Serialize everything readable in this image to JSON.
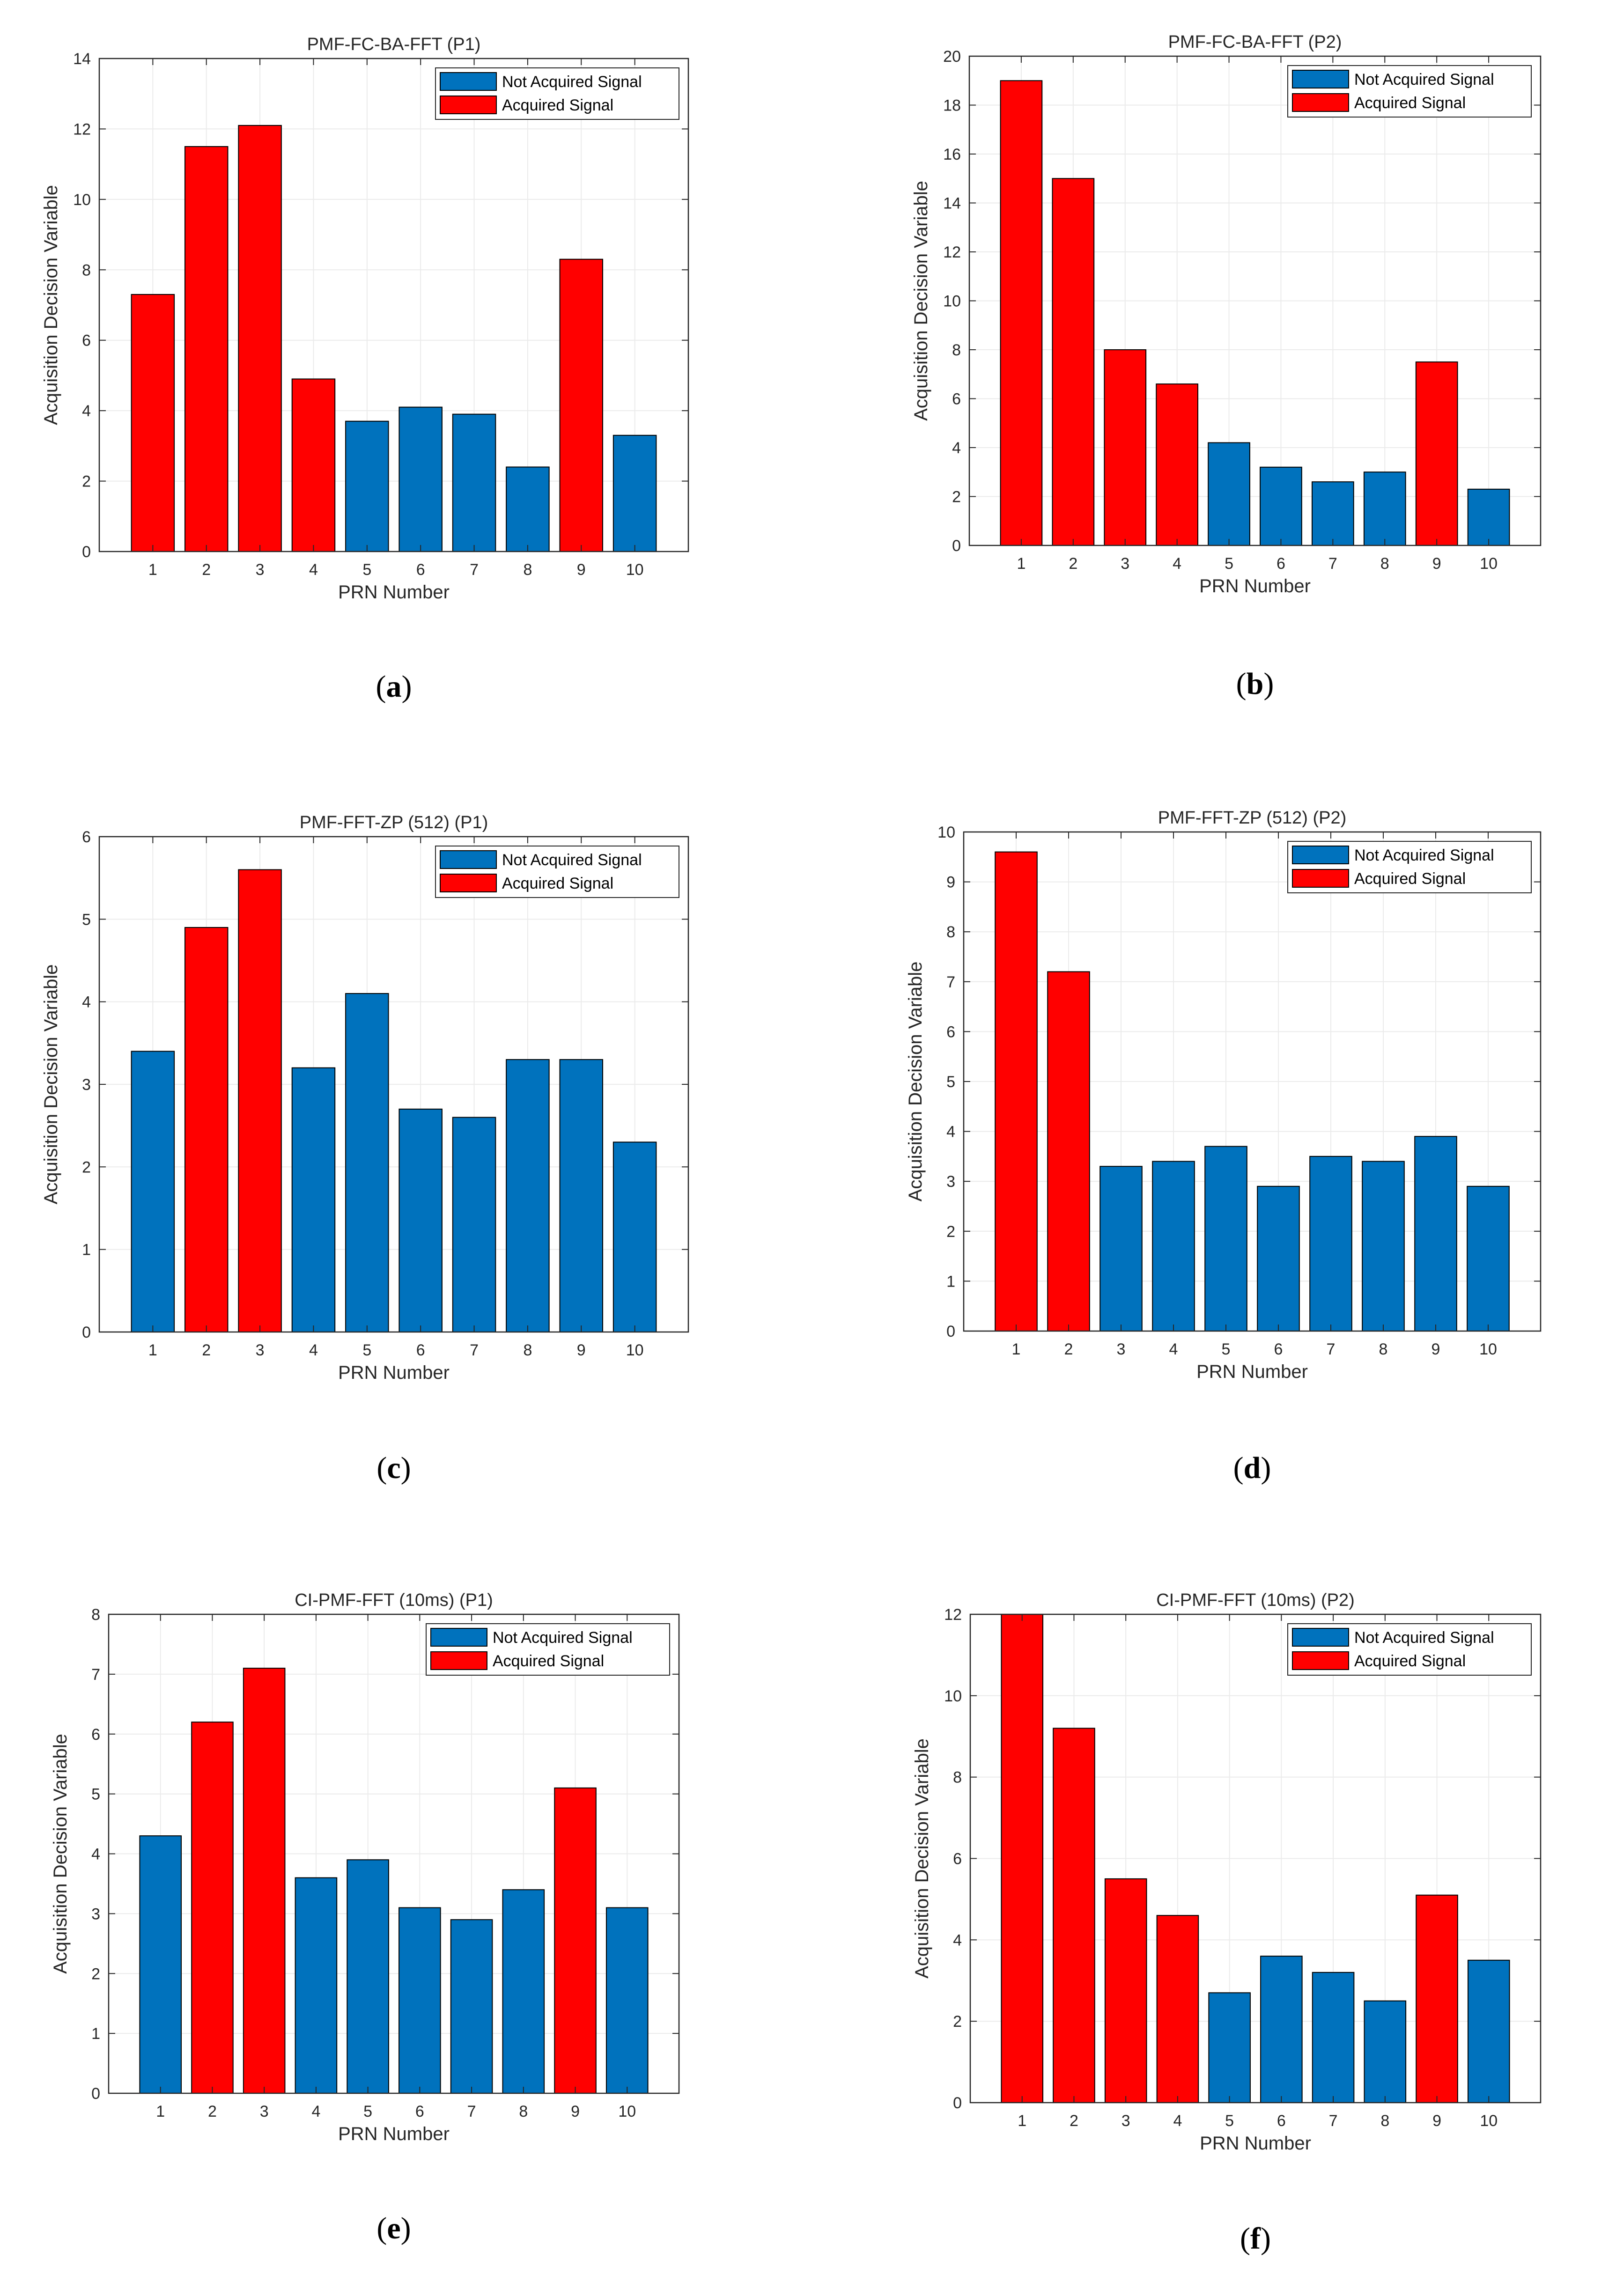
{
  "colors": {
    "not_acquired": "#0072BD",
    "acquired": "#FF0000",
    "grid": "#EBEBEB",
    "axis": "#262626"
  },
  "legend": {
    "not_acquired_label": "Not Acquired Signal",
    "acquired_label": "Acquired Signal"
  },
  "chart_data": [
    {
      "panel": "a",
      "caption_letter": "a",
      "type": "bar",
      "title": "PMF-FC-BA-FFT (P1)",
      "xlabel": "PRN Number",
      "ylabel": "Acquisition Decision Variable",
      "categories": [
        "1",
        "2",
        "3",
        "4",
        "5",
        "6",
        "7",
        "8",
        "9",
        "10"
      ],
      "values": [
        7.3,
        11.5,
        12.1,
        4.9,
        3.7,
        4.1,
        3.9,
        2.4,
        8.3,
        3.3
      ],
      "acquired": [
        true,
        true,
        true,
        true,
        false,
        false,
        false,
        false,
        true,
        false
      ],
      "ylim": [
        0,
        14
      ],
      "yticks": [
        "0",
        "2",
        "4",
        "6",
        "8",
        "10",
        "12",
        "14"
      ],
      "grid": true,
      "legend_position": "top-right"
    },
    {
      "panel": "b",
      "caption_letter": "b",
      "type": "bar",
      "title": "PMF-FC-BA-FFT (P2)",
      "xlabel": "PRN Number",
      "ylabel": "Acquisition Decision Variable",
      "categories": [
        "1",
        "2",
        "3",
        "4",
        "5",
        "6",
        "7",
        "8",
        "9",
        "10"
      ],
      "values": [
        19,
        15,
        8,
        6.6,
        4.2,
        3.2,
        2.6,
        3.0,
        7.5,
        2.3
      ],
      "acquired": [
        true,
        true,
        true,
        true,
        false,
        false,
        false,
        false,
        true,
        false
      ],
      "ylim": [
        0,
        20
      ],
      "yticks": [
        "0",
        "2",
        "4",
        "6",
        "8",
        "10",
        "12",
        "14",
        "16",
        "18",
        "20"
      ],
      "grid": true,
      "legend_position": "top-right"
    },
    {
      "panel": "c",
      "caption_letter": "c",
      "type": "bar",
      "title": "PMF-FFT-ZP (512) (P1)",
      "xlabel": "PRN Number",
      "ylabel": "Acquisition Decision Variable",
      "categories": [
        "1",
        "2",
        "3",
        "4",
        "5",
        "6",
        "7",
        "8",
        "9",
        "10"
      ],
      "values": [
        3.4,
        4.9,
        5.6,
        3.2,
        4.1,
        2.7,
        2.6,
        3.3,
        3.3,
        2.3
      ],
      "acquired": [
        false,
        true,
        true,
        false,
        false,
        false,
        false,
        false,
        false,
        false
      ],
      "ylim": [
        0,
        6
      ],
      "yticks": [
        "0",
        "1",
        "2",
        "3",
        "4",
        "5",
        "6"
      ],
      "grid": true,
      "legend_position": "top-right"
    },
    {
      "panel": "d",
      "caption_letter": "d",
      "type": "bar",
      "title": "PMF-FFT-ZP (512) (P2)",
      "xlabel": "PRN Number",
      "ylabel": "Acquisition Decision Variable",
      "categories": [
        "1",
        "2",
        "3",
        "4",
        "5",
        "6",
        "7",
        "8",
        "9",
        "10"
      ],
      "values": [
        9.6,
        7.2,
        3.3,
        3.4,
        3.7,
        2.9,
        3.5,
        3.4,
        3.9,
        2.9
      ],
      "acquired": [
        true,
        true,
        false,
        false,
        false,
        false,
        false,
        false,
        false,
        false
      ],
      "ylim": [
        0,
        10
      ],
      "yticks": [
        "0",
        "1",
        "2",
        "3",
        "4",
        "5",
        "6",
        "7",
        "8",
        "9",
        "10"
      ],
      "grid": true,
      "legend_position": "top-right"
    },
    {
      "panel": "e",
      "caption_letter": "e",
      "type": "bar",
      "title": "CI-PMF-FFT (10ms) (P1)",
      "xlabel": "PRN Number",
      "ylabel": "Acquisition Decision Variable",
      "categories": [
        "1",
        "2",
        "3",
        "4",
        "5",
        "6",
        "7",
        "8",
        "9",
        "10"
      ],
      "values": [
        4.3,
        6.2,
        7.1,
        3.6,
        3.9,
        3.1,
        2.9,
        3.4,
        5.1,
        3.1
      ],
      "acquired": [
        false,
        true,
        true,
        false,
        false,
        false,
        false,
        false,
        true,
        false
      ],
      "ylim": [
        0,
        8
      ],
      "yticks": [
        "0",
        "1",
        "2",
        "3",
        "4",
        "5",
        "6",
        "7",
        "8"
      ],
      "grid": true,
      "legend_position": "top-right"
    },
    {
      "panel": "f",
      "caption_letter": "f",
      "type": "bar",
      "title": "CI-PMF-FFT (10ms) (P2)",
      "xlabel": "PRN Number",
      "ylabel": "Acquisition Decision Variable",
      "categories": [
        "1",
        "2",
        "3",
        "4",
        "5",
        "6",
        "7",
        "8",
        "9",
        "10"
      ],
      "values": [
        12,
        9.2,
        5.5,
        4.6,
        2.7,
        3.6,
        3.2,
        2.5,
        5.1,
        3.5
      ],
      "acquired": [
        true,
        true,
        true,
        true,
        false,
        false,
        false,
        false,
        true,
        false
      ],
      "ylim": [
        0,
        12
      ],
      "yticks": [
        "0",
        "2",
        "4",
        "6",
        "8",
        "10",
        "12"
      ],
      "grid": true,
      "legend_position": "top-right"
    }
  ]
}
